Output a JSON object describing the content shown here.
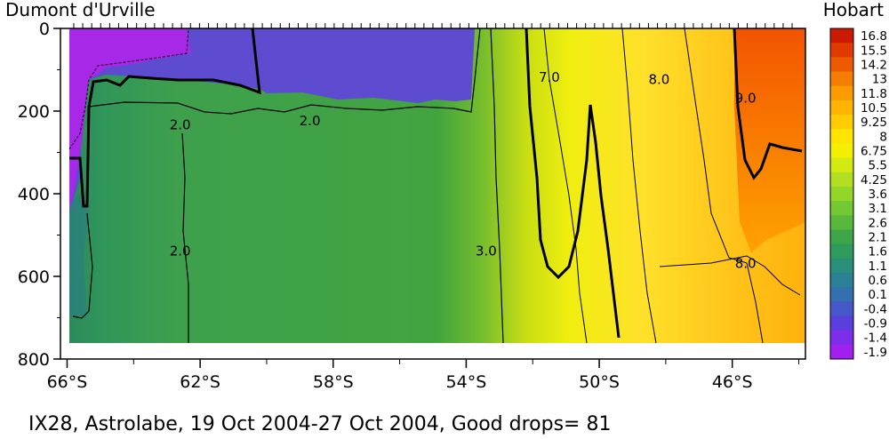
{
  "chart_data": {
    "type": "heatmap",
    "title_left": "Dumont d'Urville",
    "title_right": "Hobart",
    "caption": "IX28, Astrolabe, 19 Oct 2004-27 Oct 2004, Good drops= 81",
    "x_ticks": [
      "66°S",
      "62°S",
      "58°S",
      "54°S",
      "50°S",
      "46°S"
    ],
    "x_tick_values": [
      -66,
      -62,
      -58,
      -54,
      -50,
      -46
    ],
    "x_range": [
      -66.2,
      -43.8
    ],
    "y_ticks": [
      "0",
      "200",
      "400",
      "600",
      "800"
    ],
    "y_tick_values": [
      0,
      200,
      400,
      600,
      800
    ],
    "y_range": [
      800,
      0
    ],
    "y_reversed": true,
    "data_max_depth": 760,
    "colorbar_levels": [
      "16.8",
      "15.5",
      "14.2",
      "13",
      "11.8",
      "10.5",
      "9.25",
      "8",
      "6.75",
      "5.5",
      "4.25",
      "3.6",
      "3.1",
      "2.6",
      "2.1",
      "1.6",
      "1.1",
      "0.6",
      "0.1",
      "-0.4",
      "-0.9",
      "-1.4",
      "-1.9"
    ],
    "colorbar_values": [
      16.8,
      15.5,
      14.2,
      13,
      11.8,
      10.5,
      9.25,
      8,
      6.75,
      5.5,
      4.25,
      3.6,
      3.1,
      2.6,
      2.1,
      1.6,
      1.1,
      0.6,
      0.1,
      -0.4,
      -0.9,
      -1.4,
      -1.9
    ],
    "colorbar_colors": [
      "#cc1a00",
      "#e03a00",
      "#ee5a00",
      "#f57e00",
      "#fa9c00",
      "#ffb400",
      "#ffcc00",
      "#ffe400",
      "#f2f000",
      "#d2ea10",
      "#b2e020",
      "#92d628",
      "#74c832",
      "#58b83c",
      "#3ea648",
      "#2e9a5c",
      "#28907a",
      "#2a8094",
      "#3270b0",
      "#4658c8",
      "#5c3edc",
      "#7c2ee8",
      "#a020f0"
    ],
    "contour_labels": [
      {
        "text": "7.0",
        "lat": -51.5,
        "depth": 125
      },
      {
        "text": "8.0",
        "lat": -48.2,
        "depth": 130
      },
      {
        "text": "9.0",
        "lat": -45.6,
        "depth": 175
      },
      {
        "text": "2.0",
        "lat": -62.6,
        "depth": 240
      },
      {
        "text": "2.0",
        "lat": -58.7,
        "depth": 230
      },
      {
        "text": "2.0",
        "lat": -62.6,
        "depth": 545
      },
      {
        "text": "3.0",
        "lat": -53.4,
        "depth": 545
      },
      {
        "text": "8.0",
        "lat": -45.6,
        "depth": 575
      }
    ],
    "grid": false,
    "legend": "colorbar-right"
  }
}
